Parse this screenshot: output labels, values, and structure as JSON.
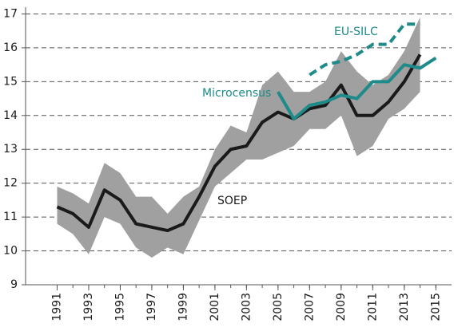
{
  "chart_data": {
    "type": "line",
    "x": [
      1991,
      1992,
      1993,
      1994,
      1995,
      1996,
      1997,
      1998,
      1999,
      2000,
      2001,
      2002,
      2003,
      2004,
      2005,
      2006,
      2007,
      2008,
      2009,
      2010,
      2011,
      2012,
      2013,
      2014,
      2015
    ],
    "interval": {
      "color": "#a0a0a0",
      "lower": [
        10.8,
        10.5,
        9.9,
        11.0,
        10.8,
        10.1,
        9.8,
        10.1,
        9.9,
        10.9,
        11.9,
        12.3,
        12.7,
        12.7,
        12.9,
        13.1,
        13.6,
        13.6,
        14.0,
        12.8,
        13.1,
        13.9,
        14.2,
        14.7,
        null
      ],
      "upper": [
        11.9,
        11.7,
        11.4,
        12.6,
        12.3,
        11.6,
        11.6,
        11.1,
        11.6,
        11.9,
        13.0,
        13.7,
        13.5,
        14.9,
        15.3,
        14.7,
        14.7,
        15.0,
        15.9,
        15.3,
        14.9,
        15.2,
        15.9,
        16.9,
        null
      ]
    },
    "series": [
      {
        "name": "SOEP",
        "color": "#1a1a1a",
        "dashed": false,
        "values": [
          11.3,
          11.1,
          10.7,
          11.8,
          11.5,
          10.8,
          10.7,
          10.6,
          10.8,
          11.6,
          12.5,
          13.0,
          13.1,
          13.8,
          14.1,
          13.9,
          14.2,
          14.3,
          14.9,
          14.0,
          14.0,
          14.4,
          15.0,
          15.8,
          null
        ]
      },
      {
        "name": "Microcensus",
        "color": "#1e8a8a",
        "dashed": false,
        "values": [
          null,
          null,
          null,
          null,
          null,
          null,
          null,
          null,
          null,
          null,
          null,
          null,
          null,
          null,
          14.7,
          13.9,
          14.3,
          14.4,
          14.6,
          14.5,
          15.0,
          15.0,
          15.5,
          15.4,
          15.7
        ]
      },
      {
        "name": "EU-SILC",
        "color": "#1e8a8a",
        "dashed": true,
        "values": [
          null,
          null,
          null,
          null,
          null,
          null,
          null,
          null,
          null,
          null,
          null,
          null,
          null,
          null,
          null,
          null,
          15.2,
          15.5,
          15.6,
          15.8,
          16.1,
          16.1,
          16.7,
          16.7,
          null
        ]
      }
    ],
    "xlim": [
      1989,
      2016
    ],
    "xticks": [
      1991,
      1993,
      1995,
      1997,
      1999,
      2001,
      2003,
      2005,
      2007,
      2009,
      2011,
      2013,
      2015
    ],
    "ylim": [
      9,
      17.2
    ],
    "yticks": [
      9,
      10,
      11,
      12,
      13,
      14,
      15,
      16,
      17
    ],
    "grid": true
  }
}
